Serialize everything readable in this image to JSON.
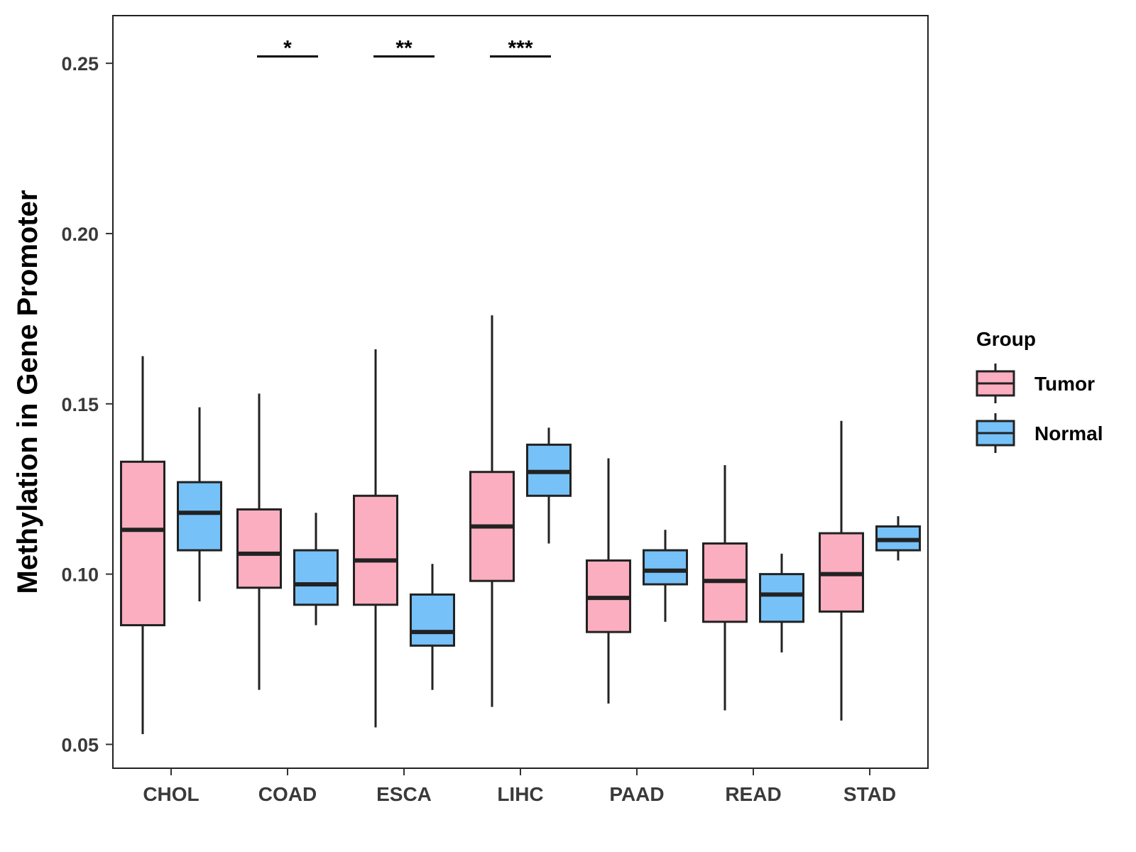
{
  "chart_data": {
    "type": "boxplot",
    "title": "",
    "xlabel": "",
    "ylabel": "Methylation in Gene Promoter",
    "ylim": [
      0.043,
      0.264
    ],
    "yticks": [
      0.05,
      0.1,
      0.15,
      0.2,
      0.25
    ],
    "ytick_labels": [
      "0.05",
      "0.10",
      "0.15",
      "0.20",
      "0.25"
    ],
    "grid": false,
    "categories": [
      "CHOL",
      "COAD",
      "ESCA",
      "LIHC",
      "PAAD",
      "READ",
      "STAD"
    ],
    "series": [
      {
        "name": "Tumor",
        "color": "#FBAEC0",
        "boxes": [
          {
            "whisker_low": 0.053,
            "q1": 0.085,
            "median": 0.113,
            "q3": 0.133,
            "whisker_high": 0.164
          },
          {
            "whisker_low": 0.066,
            "q1": 0.096,
            "median": 0.106,
            "q3": 0.119,
            "whisker_high": 0.153
          },
          {
            "whisker_low": 0.055,
            "q1": 0.091,
            "median": 0.104,
            "q3": 0.123,
            "whisker_high": 0.166
          },
          {
            "whisker_low": 0.061,
            "q1": 0.098,
            "median": 0.114,
            "q3": 0.13,
            "whisker_high": 0.176
          },
          {
            "whisker_low": 0.062,
            "q1": 0.083,
            "median": 0.093,
            "q3": 0.104,
            "whisker_high": 0.134
          },
          {
            "whisker_low": 0.06,
            "q1": 0.086,
            "median": 0.098,
            "q3": 0.109,
            "whisker_high": 0.132
          },
          {
            "whisker_low": 0.057,
            "q1": 0.089,
            "median": 0.1,
            "q3": 0.112,
            "whisker_high": 0.145
          }
        ]
      },
      {
        "name": "Normal",
        "color": "#76C1F8",
        "boxes": [
          {
            "whisker_low": 0.092,
            "q1": 0.107,
            "median": 0.118,
            "q3": 0.127,
            "whisker_high": 0.149
          },
          {
            "whisker_low": 0.085,
            "q1": 0.091,
            "median": 0.097,
            "q3": 0.107,
            "whisker_high": 0.118
          },
          {
            "whisker_low": 0.066,
            "q1": 0.079,
            "median": 0.083,
            "q3": 0.094,
            "whisker_high": 0.103
          },
          {
            "whisker_low": 0.109,
            "q1": 0.123,
            "median": 0.13,
            "q3": 0.138,
            "whisker_high": 0.143
          },
          {
            "whisker_low": 0.086,
            "q1": 0.097,
            "median": 0.101,
            "q3": 0.107,
            "whisker_high": 0.113
          },
          {
            "whisker_low": 0.077,
            "q1": 0.086,
            "median": 0.094,
            "q3": 0.1,
            "whisker_high": 0.106
          },
          {
            "whisker_low": 0.104,
            "q1": 0.107,
            "median": 0.11,
            "q3": 0.114,
            "whisker_high": 0.117
          }
        ]
      }
    ],
    "significance": [
      {
        "category": "COAD",
        "label": "*",
        "y": 0.252
      },
      {
        "category": "ESCA",
        "label": "**",
        "y": 0.252
      },
      {
        "category": "LIHC",
        "label": "***",
        "y": 0.252
      }
    ],
    "legend": {
      "title": "Group",
      "position": "right",
      "entries": [
        "Tumor",
        "Normal"
      ]
    }
  }
}
